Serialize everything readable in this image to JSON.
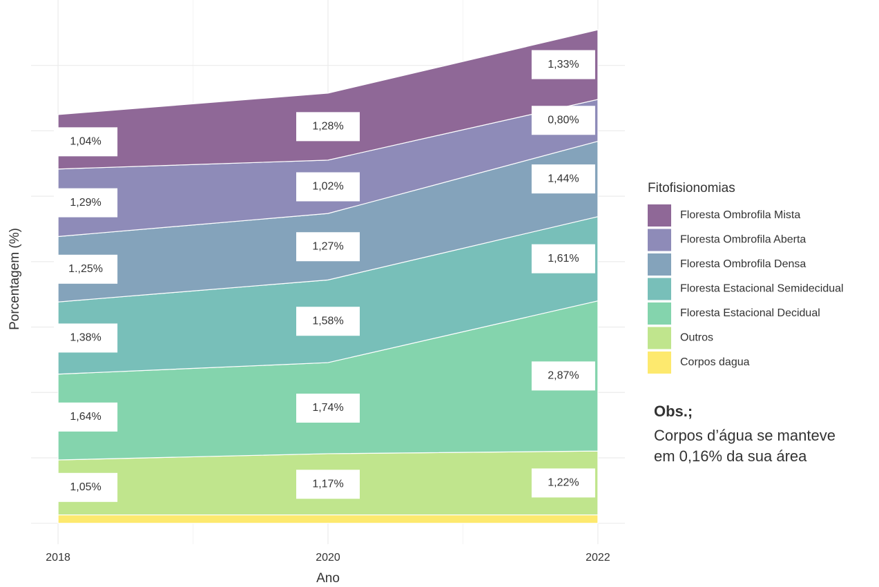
{
  "chart_data": {
    "type": "area",
    "stacked": true,
    "x": [
      2018,
      2020,
      2022
    ],
    "xlim": [
      2017.8,
      2022.2
    ],
    "xticks": [
      2018,
      2020,
      2022
    ],
    "ylim": [
      -0.4,
      10
    ],
    "ygrid": [
      0,
      1.25,
      2.5,
      3.75,
      5,
      6.25,
      7.5,
      8.75
    ],
    "xlabel": "Ano",
    "ylabel": "Porcentagem (%)",
    "legend_title": "Fitofisionomias",
    "legend": "right",
    "series": [
      {
        "name": "Corpos dagua",
        "color": "#fde96e",
        "values": [
          0.16,
          0.16,
          0.16
        ]
      },
      {
        "name": "Outros",
        "color": "#c0e58d",
        "values": [
          1.05,
          1.17,
          1.22
        ],
        "value_labels": [
          "1,05%",
          "1,17%",
          "1,22%"
        ]
      },
      {
        "name": "Floresta Estacional Decidual",
        "color": "#84d4ad",
        "values": [
          1.64,
          1.74,
          2.87
        ],
        "value_labels": [
          "1,64%",
          "1,74%",
          "2,87%"
        ]
      },
      {
        "name": "Floresta Estacional Semidecidual",
        "color": "#78bfb9",
        "values": [
          1.38,
          1.58,
          1.61
        ],
        "value_labels": [
          "1,38%",
          "1,58%",
          "1,61%"
        ]
      },
      {
        "name": "Floresta Ombrofila Densa",
        "color": "#84a3bb",
        "values": [
          1.25,
          1.27,
          1.44
        ],
        "value_labels": [
          "1.,25%",
          "1,27%",
          "1,44%"
        ]
      },
      {
        "name": "Floresta Ombrofila Aberta",
        "color": "#8e8bb8",
        "values": [
          1.29,
          1.02,
          0.8
        ],
        "value_labels": [
          "1,29%",
          "1,02%",
          "0,80%"
        ]
      },
      {
        "name": "Floresta Ombrofila Mista",
        "color": "#8f6897",
        "values": [
          1.04,
          1.28,
          1.33
        ],
        "value_labels": [
          "1,04%",
          "1,28%",
          "1,33%"
        ]
      }
    ],
    "annotations": [
      "Obs.;",
      "Corpos d’água se manteve",
      "em 0,16% da sua área"
    ]
  }
}
